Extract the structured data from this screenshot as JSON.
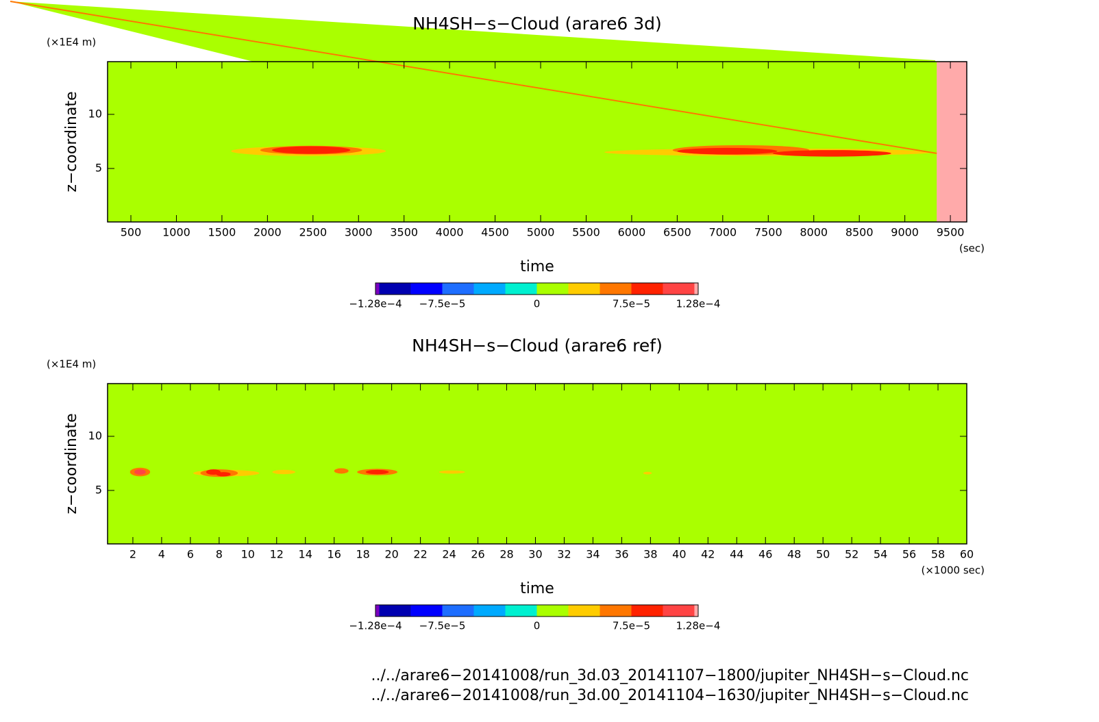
{
  "chart_data": [
    {
      "type": "contour",
      "title": "NH4SH−s−Cloud (arare6 3d)",
      "y_label": "z−coordinate",
      "y_unit": "(×1E4 m)",
      "x_label": "time",
      "x_unit": "(sec)",
      "xlim": [
        244,
        9680
      ],
      "xticks": [
        500,
        1000,
        1500,
        2000,
        2500,
        3000,
        3500,
        4000,
        4500,
        5000,
        5500,
        6000,
        6500,
        7000,
        7500,
        8000,
        8500,
        9000,
        9500
      ],
      "ylim": [
        0.06,
        14.87
      ],
      "yticks": [
        5,
        10
      ],
      "field_value": 1e-05,
      "missing_from": 9350,
      "missing_color": "#ffaaaa",
      "blobs": [
        {
          "x": 2450,
          "z": 6.6,
          "rx": 850,
          "rz": 0.45,
          "value": 4e-05
        },
        {
          "x": 2480,
          "z": 6.7,
          "rx": 560,
          "rz": 0.4,
          "value": 6e-05
        },
        {
          "x": 2480,
          "z": 6.7,
          "rx": 430,
          "rz": 0.35,
          "value": 9e-05
        },
        {
          "x": 7500,
          "z": 6.5,
          "rx": 1800,
          "rz": 0.35,
          "value": 4e-05
        },
        {
          "x": 7200,
          "z": 6.7,
          "rx": 750,
          "rz": 0.45,
          "value": 6e-05
        },
        {
          "x": 7050,
          "z": 6.6,
          "rx": 550,
          "rz": 0.3,
          "value": 9e-05
        },
        {
          "x": 8200,
          "z": 6.4,
          "rx": 650,
          "rz": 0.3,
          "value": 9e-05
        }
      ],
      "colorbar": {
        "lim": [
          -0.000128,
          0.000128
        ],
        "levels": [
          -0.000128,
          -0.000125,
          -0.0001,
          -7.5e-05,
          -5e-05,
          -2.5e-05,
          0,
          2.5e-05,
          5e-05,
          7.5e-05,
          0.0001,
          0.000125,
          0.000128
        ],
        "colors": [
          "#7a00c0",
          "#0000b0",
          "#0000ff",
          "#1e6eff",
          "#00aaff",
          "#00f0d0",
          "#aaff00",
          "#ffcc00",
          "#ff7700",
          "#ff2200",
          "#ff4444",
          "#ffaaaa"
        ],
        "ticks": [
          {
            "value": -0.000128,
            "label": "−1.28e−4"
          },
          {
            "value": -7.5e-05,
            "label": "−7.5e−5"
          },
          0,
          {
            "value": 7.5e-05,
            "label": "7.5e−5"
          },
          {
            "value": 0.000128,
            "label": "1.28e−4"
          }
        ]
      }
    },
    {
      "type": "contour",
      "title": "NH4SH−s−Cloud (arare6 ref)",
      "y_label": "z−coordinate",
      "y_unit": "(×1E4 m)",
      "x_label": "time",
      "x_unit": "(×1000 sec)",
      "xlim": [
        0.24,
        60
      ],
      "xticks": [
        2,
        4,
        6,
        8,
        10,
        12,
        14,
        16,
        18,
        20,
        22,
        24,
        26,
        28,
        30,
        32,
        34,
        36,
        38,
        40,
        42,
        44,
        46,
        48,
        50,
        52,
        54,
        56,
        58,
        60
      ],
      "ylim": [
        0.06,
        14.87
      ],
      "yticks": [
        5,
        10
      ],
      "field_value": 1e-05,
      "blobs": [
        {
          "x": 2.5,
          "z": 6.7,
          "rx": 0.7,
          "rz": 0.4,
          "value": 6e-05
        },
        {
          "x": 2.5,
          "z": 6.7,
          "rx": 0.4,
          "rz": 0.25,
          "value": 0.00011
        },
        {
          "x": 8.5,
          "z": 6.6,
          "rx": 2.3,
          "rz": 0.3,
          "value": 4e-05
        },
        {
          "x": 8.0,
          "z": 6.6,
          "rx": 1.3,
          "rz": 0.35,
          "value": 6e-05
        },
        {
          "x": 7.6,
          "z": 6.7,
          "rx": 0.5,
          "rz": 0.25,
          "value": 9e-05
        },
        {
          "x": 8.3,
          "z": 6.5,
          "rx": 0.5,
          "rz": 0.2,
          "value": 9e-05
        },
        {
          "x": 12.5,
          "z": 6.7,
          "rx": 0.8,
          "rz": 0.2,
          "value": 4e-05
        },
        {
          "x": 16.5,
          "z": 6.8,
          "rx": 0.5,
          "rz": 0.25,
          "value": 6e-05
        },
        {
          "x": 19.0,
          "z": 6.7,
          "rx": 1.4,
          "rz": 0.3,
          "value": 6e-05
        },
        {
          "x": 19.0,
          "z": 6.7,
          "rx": 0.8,
          "rz": 0.2,
          "value": 9e-05
        },
        {
          "x": 24.2,
          "z": 6.7,
          "rx": 0.9,
          "rz": 0.15,
          "value": 4e-05
        },
        {
          "x": 37.8,
          "z": 6.6,
          "rx": 0.3,
          "rz": 0.12,
          "value": 4e-05
        }
      ],
      "colorbar": {
        "lim": [
          -0.000128,
          0.000128
        ],
        "levels": [
          -0.000128,
          -0.000125,
          -0.0001,
          -7.5e-05,
          -5e-05,
          -2.5e-05,
          0,
          2.5e-05,
          5e-05,
          7.5e-05,
          0.0001,
          0.000125,
          0.000128
        ],
        "colors": [
          "#7a00c0",
          "#0000b0",
          "#0000ff",
          "#1e6eff",
          "#00aaff",
          "#00f0d0",
          "#aaff00",
          "#ffcc00",
          "#ff7700",
          "#ff2200",
          "#ff4444",
          "#ffaaaa"
        ],
        "ticks": [
          {
            "value": -0.000128,
            "label": "−1.28e−4"
          },
          {
            "value": -7.5e-05,
            "label": "−7.5e−5"
          },
          0,
          {
            "value": 7.5e-05,
            "label": "7.5e−5"
          },
          {
            "value": 0.000128,
            "label": "1.28e−4"
          }
        ]
      }
    }
  ],
  "footer": [
    "../../arare6−20141008/run_3d.03_20141107−1800/jupiter_NH4SH−s−Cloud.nc",
    "../../arare6−20141008/run_3d.00_20141104−1630/jupiter_NH4SH−s−Cloud.nc"
  ]
}
